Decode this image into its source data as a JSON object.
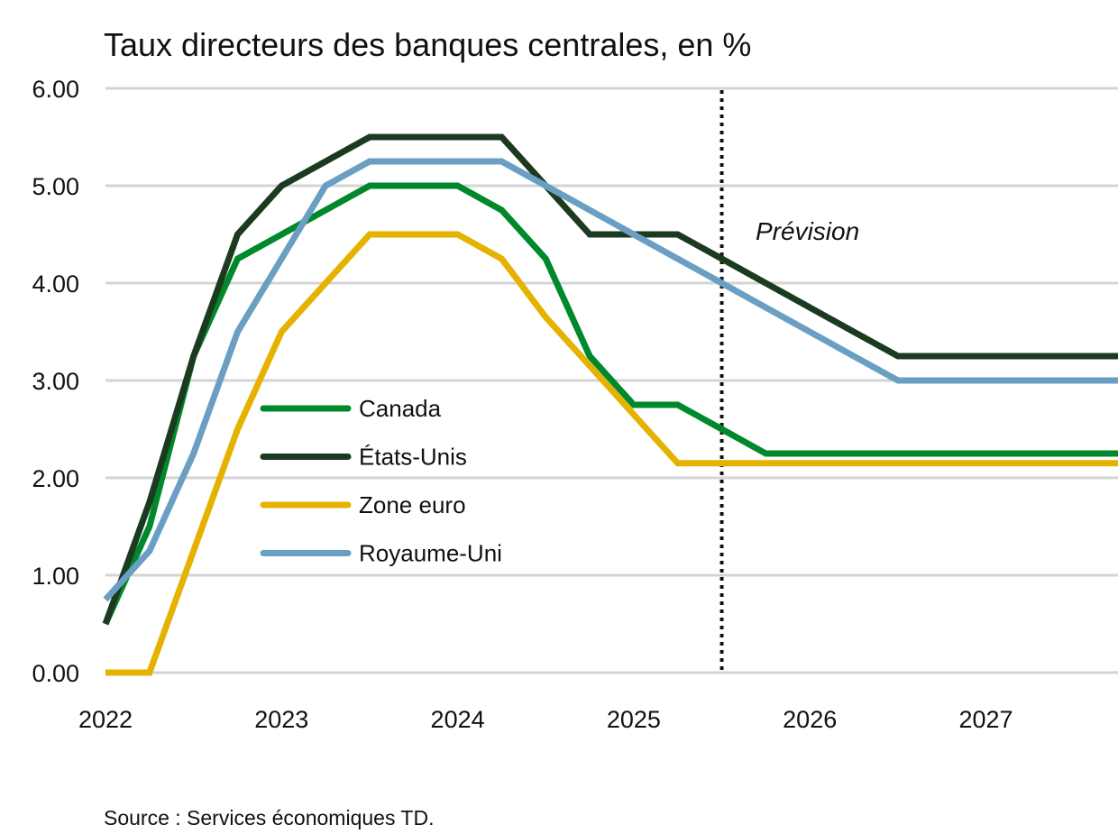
{
  "chart_data": {
    "type": "line",
    "title": "Taux directeurs des banques centrales, en %",
    "source": "Source : Services économiques TD.",
    "forecast_label": "Prévision",
    "forecast_start": 2025.5,
    "xlim": [
      2022,
      2027.75
    ],
    "ylim": [
      0,
      6
    ],
    "x_ticks": [
      "2022",
      "2023",
      "2024",
      "2025",
      "2026",
      "2027"
    ],
    "y_ticks": [
      "0.00",
      "1.00",
      "2.00",
      "3.00",
      "4.00",
      "5.00",
      "6.00"
    ],
    "grid": "horizontal",
    "legend_placement": "center-left",
    "x_step": "quarterly",
    "x_start": 2022,
    "series": [
      {
        "name": "Canada",
        "color": "#00892a",
        "values": [
          0.5,
          1.5,
          3.25,
          4.25,
          4.5,
          4.75,
          5.0,
          5.0,
          5.0,
          4.75,
          4.25,
          3.25,
          2.75,
          2.75,
          2.5,
          2.25,
          2.25,
          2.25,
          2.25,
          2.25,
          2.25,
          2.25,
          2.25,
          2.25
        ]
      },
      {
        "name": "États-Unis",
        "color": "#1b3a20",
        "values": [
          0.5,
          1.75,
          3.25,
          4.5,
          5.0,
          5.25,
          5.5,
          5.5,
          5.5,
          5.5,
          5.0,
          4.5,
          4.5,
          4.5,
          4.25,
          4.0,
          3.75,
          3.5,
          3.25,
          3.25,
          3.25,
          3.25,
          3.25,
          3.25
        ]
      },
      {
        "name": "Zone euro",
        "color": "#e6b200",
        "values": [
          0,
          0,
          1.25,
          2.5,
          3.5,
          4.0,
          4.5,
          4.5,
          4.5,
          4.25,
          3.65,
          3.15,
          2.65,
          2.15,
          2.15,
          2.15,
          2.15,
          2.15,
          2.15,
          2.15,
          2.15,
          2.15,
          2.15,
          2.15
        ]
      },
      {
        "name": "Royaume-Uni",
        "color": "#6a9fc3",
        "values": [
          0.75,
          1.25,
          2.25,
          3.5,
          4.25,
          5.0,
          5.25,
          5.25,
          5.25,
          5.25,
          5.0,
          4.75,
          4.5,
          4.25,
          4.0,
          3.75,
          3.5,
          3.25,
          3.0,
          3.0,
          3.0,
          3.0,
          3.0,
          3.0
        ]
      }
    ]
  }
}
